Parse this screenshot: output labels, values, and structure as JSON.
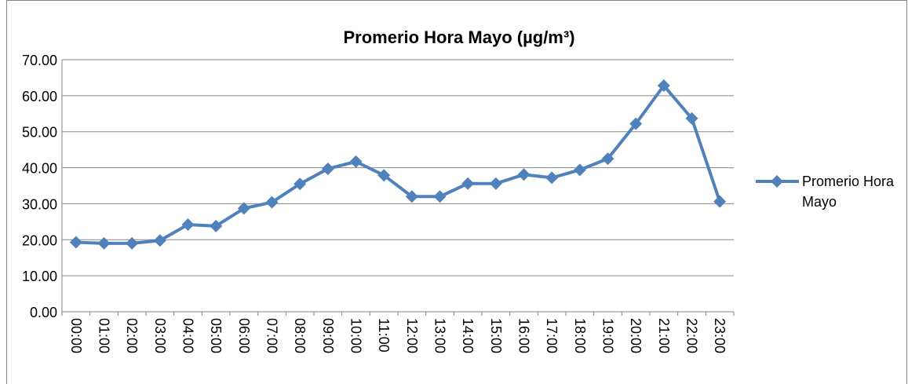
{
  "chart_data": {
    "type": "line",
    "title": "Promerio Hora Mayo (µg/m³)",
    "categories": [
      "00:00",
      "01:00",
      "02:00",
      "03:00",
      "04:00",
      "05:00",
      "06:00",
      "07:00",
      "08:00",
      "09:00",
      "10:00",
      "11:00",
      "12:00",
      "13:00",
      "14:00",
      "15:00",
      "16:00",
      "17:00",
      "18:00",
      "19:00",
      "20:00",
      "21:00",
      "22:00",
      "23:00"
    ],
    "series": [
      {
        "name": "Promerio Hora Mayo",
        "color": "#4f81bd",
        "values": [
          19.3,
          19.0,
          19.0,
          19.8,
          24.2,
          23.8,
          28.7,
          30.4,
          35.5,
          39.7,
          41.7,
          37.9,
          32.0,
          32.0,
          35.6,
          35.6,
          38.1,
          37.2,
          39.4,
          42.5,
          52.2,
          62.8,
          53.7,
          30.6
        ]
      }
    ],
    "ylim": [
      0,
      70
    ],
    "yticks": [
      {
        "value": 0,
        "label": "0.00"
      },
      {
        "value": 10,
        "label": "10.00"
      },
      {
        "value": 20,
        "label": "20.00"
      },
      {
        "value": 30,
        "label": "30.00"
      },
      {
        "value": 40,
        "label": "40.00"
      },
      {
        "value": 50,
        "label": "50.00"
      },
      {
        "value": 60,
        "label": "60.00"
      },
      {
        "value": 70,
        "label": "70.00"
      }
    ],
    "grid": true,
    "legend": "right"
  }
}
